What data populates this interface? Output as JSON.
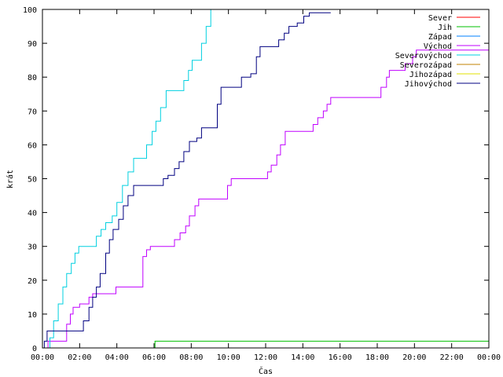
{
  "chart_data": {
    "type": "line",
    "title": "",
    "xlabel": "Čas",
    "ylabel": "krát",
    "xlim": [
      0,
      24
    ],
    "ylim": [
      0,
      100
    ],
    "x_ticks": [
      0,
      2,
      4,
      6,
      8,
      10,
      12,
      14,
      16,
      18,
      20,
      22,
      24
    ],
    "x_tick_labels": [
      "00:00",
      "02:00",
      "04:00",
      "06:00",
      "08:00",
      "10:00",
      "12:00",
      "14:00",
      "16:00",
      "18:00",
      "20:00",
      "22:00",
      "00:00"
    ],
    "y_ticks": [
      0,
      10,
      20,
      30,
      40,
      50,
      60,
      70,
      80,
      90,
      100
    ],
    "y_tick_labels": [
      "0",
      "10",
      "20",
      "30",
      "40",
      "50",
      "60",
      "70",
      "80",
      "90",
      "100"
    ],
    "grid": false,
    "legend_position": "top-right",
    "step": true,
    "series": [
      {
        "name": "Sever",
        "color": "#ff0000",
        "points": []
      },
      {
        "name": "Jih",
        "color": "#00c000",
        "points": [
          [
            0,
            0
          ],
          [
            6.05,
            0
          ],
          [
            6.05,
            2
          ],
          [
            24,
            2
          ]
        ]
      },
      {
        "name": "Západ",
        "color": "#0080ff",
        "points": []
      },
      {
        "name": "Východ",
        "color": "#c000ff",
        "points": [
          [
            0,
            0
          ],
          [
            0.3,
            0
          ],
          [
            0.3,
            2
          ],
          [
            1.2,
            2
          ],
          [
            1.3,
            7
          ],
          [
            1.5,
            10
          ],
          [
            1.65,
            12
          ],
          [
            2.0,
            13
          ],
          [
            2.5,
            15
          ],
          [
            2.7,
            16
          ],
          [
            3.9,
            16
          ],
          [
            3.95,
            18
          ],
          [
            5.2,
            18
          ],
          [
            5.4,
            27
          ],
          [
            5.6,
            29
          ],
          [
            5.8,
            30
          ],
          [
            7.0,
            30
          ],
          [
            7.1,
            32
          ],
          [
            7.4,
            34
          ],
          [
            7.7,
            36
          ],
          [
            7.9,
            39
          ],
          [
            8.2,
            42
          ],
          [
            8.4,
            44
          ],
          [
            9.85,
            44
          ],
          [
            9.95,
            48
          ],
          [
            10.15,
            50
          ],
          [
            11.95,
            50
          ],
          [
            12.1,
            52
          ],
          [
            12.3,
            54
          ],
          [
            12.6,
            57
          ],
          [
            12.8,
            60
          ],
          [
            13.05,
            64
          ],
          [
            14.5,
            64
          ],
          [
            14.55,
            66
          ],
          [
            14.8,
            68
          ],
          [
            15.1,
            70
          ],
          [
            15.3,
            72
          ],
          [
            15.5,
            74
          ],
          [
            18.1,
            74
          ],
          [
            18.2,
            77
          ],
          [
            18.5,
            80
          ],
          [
            18.65,
            82
          ],
          [
            19.35,
            82
          ],
          [
            19.5,
            84
          ],
          [
            19.9,
            86
          ],
          [
            20.1,
            88
          ],
          [
            24,
            88
          ]
        ]
      },
      {
        "name": "Severovýchod",
        "color": "#00d0e0",
        "points": [
          [
            0,
            0
          ],
          [
            0.3,
            0
          ],
          [
            0.4,
            3
          ],
          [
            0.6,
            8
          ],
          [
            0.85,
            13
          ],
          [
            1.1,
            18
          ],
          [
            1.3,
            22
          ],
          [
            1.55,
            25
          ],
          [
            1.75,
            28
          ],
          [
            1.95,
            30
          ],
          [
            2.7,
            30
          ],
          [
            2.9,
            33
          ],
          [
            3.15,
            35
          ],
          [
            3.4,
            37
          ],
          [
            3.75,
            39
          ],
          [
            4.0,
            43
          ],
          [
            4.3,
            48
          ],
          [
            4.6,
            52
          ],
          [
            4.9,
            56
          ],
          [
            5.35,
            56
          ],
          [
            5.6,
            60
          ],
          [
            5.9,
            64
          ],
          [
            6.1,
            67
          ],
          [
            6.35,
            71
          ],
          [
            6.65,
            76
          ],
          [
            7.4,
            76
          ],
          [
            7.6,
            79
          ],
          [
            7.85,
            82
          ],
          [
            8.05,
            85
          ],
          [
            8.35,
            85
          ],
          [
            8.55,
            90
          ],
          [
            8.8,
            95
          ],
          [
            9.05,
            100
          ]
        ]
      },
      {
        "name": "Severozápad",
        "color": "#c08000",
        "points": []
      },
      {
        "name": "Jihozápad",
        "color": "#e0e000",
        "points": []
      },
      {
        "name": "Jihovýchod",
        "color": "#000080",
        "points": [
          [
            0,
            0
          ],
          [
            0.05,
            0
          ],
          [
            0.1,
            2
          ],
          [
            0.25,
            5
          ],
          [
            1.9,
            5
          ],
          [
            2.2,
            8
          ],
          [
            2.5,
            12
          ],
          [
            2.7,
            15
          ],
          [
            2.9,
            18
          ],
          [
            3.1,
            22
          ],
          [
            3.4,
            28
          ],
          [
            3.6,
            32
          ],
          [
            3.8,
            35
          ],
          [
            4.1,
            38
          ],
          [
            4.35,
            42
          ],
          [
            4.6,
            45
          ],
          [
            4.9,
            48
          ],
          [
            6.25,
            48
          ],
          [
            6.5,
            50
          ],
          [
            6.75,
            51
          ],
          [
            7.1,
            53
          ],
          [
            7.35,
            55
          ],
          [
            7.6,
            58
          ],
          [
            7.9,
            61
          ],
          [
            8.3,
            62
          ],
          [
            8.55,
            65
          ],
          [
            9.2,
            65
          ],
          [
            9.4,
            72
          ],
          [
            9.6,
            77
          ],
          [
            10.5,
            77
          ],
          [
            10.7,
            80
          ],
          [
            11.2,
            81
          ],
          [
            11.5,
            86
          ],
          [
            11.7,
            89
          ],
          [
            12.5,
            89
          ],
          [
            12.7,
            91
          ],
          [
            13.0,
            93
          ],
          [
            13.25,
            95
          ],
          [
            13.7,
            96
          ],
          [
            14.05,
            98
          ],
          [
            14.35,
            99
          ],
          [
            15.5,
            99
          ]
        ]
      }
    ]
  }
}
